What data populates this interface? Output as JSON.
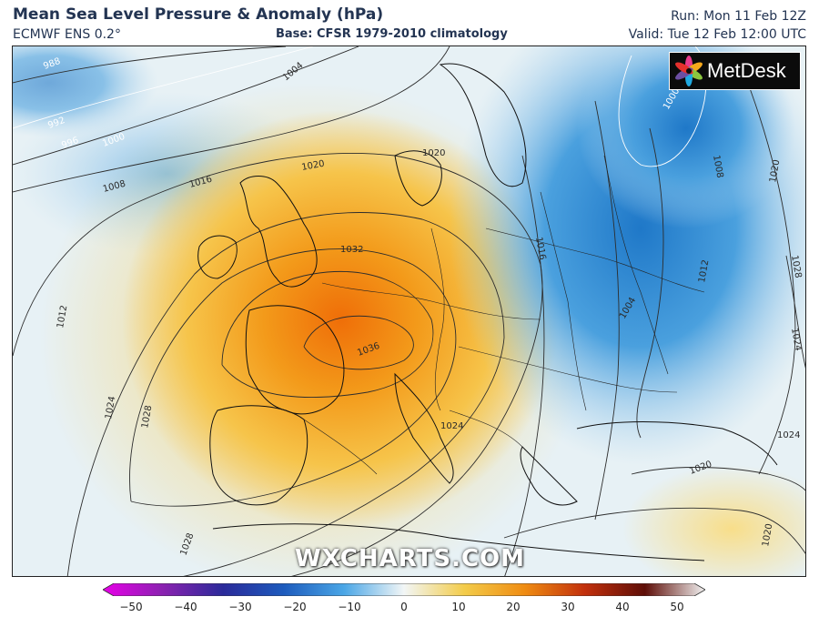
{
  "header": {
    "title": "Mean Sea Level Pressure & Anomaly (hPa)",
    "model": "ECMWF ENS 0.2°",
    "base": "Base: CFSR 1979-2010 climatology",
    "run": "Run: Mon 11 Feb 12Z",
    "valid": "Valid: Tue 12 Feb 12:00 UTC"
  },
  "logo": {
    "text": "MetDesk",
    "icon": "metdesk-flower-icon"
  },
  "watermark": "WXCHARTS.COM",
  "isobars": {
    "labels": [
      "988",
      "992",
      "996",
      "1000",
      "1004",
      "1008",
      "1012",
      "1016",
      "1020",
      "1024",
      "1028",
      "1032",
      "1036",
      "1012",
      "1016",
      "1008",
      "1004",
      "1000",
      "1020",
      "1024",
      "1028",
      "1024",
      "1028",
      "1020",
      "1020",
      "1020",
      "1024"
    ]
  },
  "colorbar": {
    "ticks": [
      "−50",
      "−40",
      "−30",
      "−20",
      "−10",
      "0",
      "10",
      "20",
      "30",
      "40",
      "50"
    ],
    "colors": [
      "#d400d4",
      "#7a1fa8",
      "#2a2a9a",
      "#1d4fb0",
      "#3d9be0",
      "#eef6fb",
      "#f3c640",
      "#ee8a10",
      "#c0300c",
      "#6e1008",
      "#f0f0f0"
    ]
  },
  "map_colors": {
    "sea_neutral": "#eaf3f6",
    "high_anomaly": "#f28c12",
    "low_anomaly": "#3e95dc"
  }
}
